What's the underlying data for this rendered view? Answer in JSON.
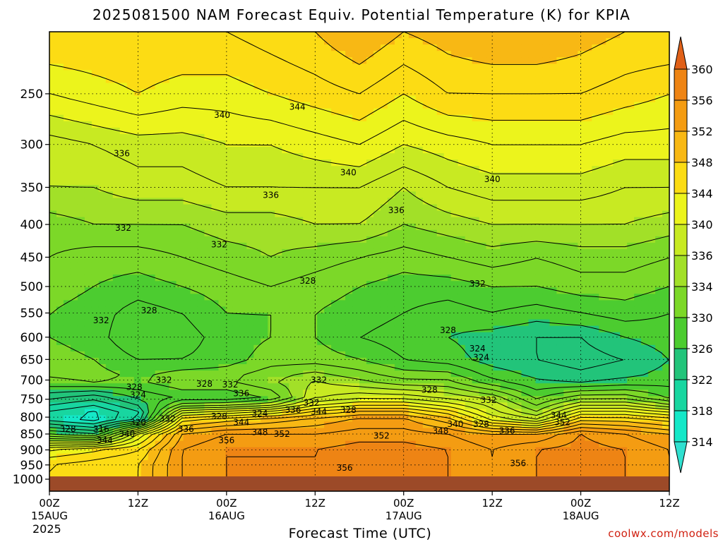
{
  "chart_data": {
    "type": "heatmap",
    "title": "2025081500 NAM Forecast Equiv. Potential Temperature (K) for KPIA",
    "xlabel": "Forecast Time (UTC)",
    "ylabel": "",
    "year_label": "2025",
    "credit": "coolwx.com/models",
    "x_ticks": [
      {
        "hour": 0,
        "label": "00Z",
        "date": "15AUG"
      },
      {
        "hour": 12,
        "label": "12Z",
        "date": ""
      },
      {
        "hour": 24,
        "label": "00Z",
        "date": "16AUG"
      },
      {
        "hour": 36,
        "label": "12Z",
        "date": ""
      },
      {
        "hour": 48,
        "label": "00Z",
        "date": "17AUG"
      },
      {
        "hour": 60,
        "label": "12Z",
        "date": ""
      },
      {
        "hour": 72,
        "label": "00Z",
        "date": "18AUG"
      },
      {
        "hour": 84,
        "label": "12Z",
        "date": ""
      }
    ],
    "xlim": [
      0,
      84
    ],
    "y_ticks": [
      250,
      300,
      350,
      400,
      450,
      500,
      550,
      600,
      650,
      700,
      750,
      800,
      850,
      900,
      950,
      1000
    ],
    "ylim": [
      200,
      1000
    ],
    "y_scale": "log-pressure (inverted)",
    "ground_level_hPa": 990,
    "colorbar": {
      "levels": [
        314,
        318,
        322,
        326,
        330,
        334,
        336,
        340,
        344,
        348,
        352,
        356,
        360
      ],
      "colors": [
        "#14e8c8",
        "#18d6a0",
        "#22c47a",
        "#4ccc30",
        "#7cd828",
        "#a2e028",
        "#c8ea22",
        "#ecf41c",
        "#fcdc14",
        "#f8b814",
        "#f49c12",
        "#ee8414",
        "#e46c16"
      ],
      "under_color": "#30e0d0",
      "over_color": "#e06018"
    },
    "profile_hPa": [
      200,
      250,
      300,
      350,
      400,
      450,
      500,
      550,
      600,
      650,
      700,
      750,
      800,
      850,
      900,
      950,
      1000
    ],
    "times": [
      0,
      6,
      12,
      18,
      24,
      30,
      36,
      42,
      48,
      54,
      60,
      66,
      72,
      78,
      84
    ],
    "theta_e": [
      [
        346,
        342,
        337,
        336,
        333,
        332,
        331,
        330,
        330,
        331,
        330,
        324,
        318,
        328,
        342,
        346,
        346
      ],
      [
        346,
        343,
        338,
        336,
        334,
        331,
        330,
        329,
        329,
        330,
        331,
        322,
        316,
        326,
        344,
        347,
        347
      ],
      [
        346,
        344,
        339,
        337,
        334,
        331,
        329,
        327,
        326,
        328,
        330,
        326,
        320,
        340,
        346,
        348,
        348
      ],
      [
        346,
        343,
        339,
        337,
        334,
        332,
        330,
        328,
        327,
        328,
        332,
        328,
        344,
        352,
        354,
        354,
        354
      ],
      [
        346,
        343,
        340,
        338,
        335,
        333,
        331,
        330,
        329,
        329,
        332,
        328,
        346,
        354,
        356,
        356,
        356
      ],
      [
        347,
        344,
        340,
        338,
        335,
        334,
        332,
        330,
        330,
        331,
        334,
        330,
        348,
        354,
        356,
        356,
        356
      ],
      [
        348,
        345,
        341,
        338,
        336,
        333,
        331,
        330,
        330,
        331,
        336,
        338,
        350,
        354,
        356,
        356,
        356
      ],
      [
        350,
        346,
        342,
        338,
        336,
        332,
        330,
        329,
        328,
        330,
        334,
        340,
        352,
        355,
        357,
        357,
        357
      ],
      [
        348,
        344,
        340,
        336,
        334,
        331,
        329,
        328,
        327,
        328,
        332,
        340,
        352,
        355,
        357,
        357,
        357
      ],
      [
        349,
        346,
        341,
        338,
        335,
        332,
        329,
        327,
        326,
        327,
        332,
        338,
        348,
        354,
        356,
        356,
        356
      ],
      [
        350,
        346,
        342,
        339,
        336,
        333,
        330,
        328,
        325,
        325,
        328,
        336,
        340,
        352,
        354,
        354,
        354
      ],
      [
        350,
        346,
        342,
        339,
        336,
        332,
        330,
        327,
        324,
        324,
        326,
        330,
        336,
        352,
        356,
        356,
        356
      ],
      [
        349,
        346,
        342,
        339,
        336,
        333,
        331,
        328,
        324,
        323,
        325,
        334,
        346,
        356,
        357,
        357,
        357
      ],
      [
        348,
        345,
        341,
        338,
        336,
        333,
        331,
        329,
        326,
        324,
        326,
        334,
        346,
        354,
        356,
        356,
        356
      ],
      [
        348,
        344,
        341,
        338,
        335,
        332,
        330,
        328,
        327,
        326,
        327,
        330,
        344,
        352,
        354,
        354,
        354
      ]
    ],
    "contour_labels": [
      {
        "t": 23.4,
        "p": 270,
        "v": "340"
      },
      {
        "t": 33.6,
        "p": 262,
        "v": "344"
      },
      {
        "t": 9.8,
        "p": 310,
        "v": "336"
      },
      {
        "t": 40.5,
        "p": 332,
        "v": "340"
      },
      {
        "t": 60.0,
        "p": 340,
        "v": "340"
      },
      {
        "t": 30.0,
        "p": 360,
        "v": "336"
      },
      {
        "t": 47.0,
        "p": 380,
        "v": "336"
      },
      {
        "t": 10.0,
        "p": 405,
        "v": "332"
      },
      {
        "t": 23.0,
        "p": 430,
        "v": "332"
      },
      {
        "t": 35.0,
        "p": 490,
        "v": "328"
      },
      {
        "t": 58.0,
        "p": 495,
        "v": "332"
      },
      {
        "t": 13.5,
        "p": 545,
        "v": "328"
      },
      {
        "t": 7.0,
        "p": 565,
        "v": "332"
      },
      {
        "t": 54.0,
        "p": 585,
        "v": "328"
      },
      {
        "t": 58.0,
        "p": 625,
        "v": "324"
      },
      {
        "t": 58.5,
        "p": 645,
        "v": "324"
      },
      {
        "t": 15.5,
        "p": 700,
        "v": "332"
      },
      {
        "t": 21.0,
        "p": 710,
        "v": "328"
      },
      {
        "t": 24.5,
        "p": 712,
        "v": "332"
      },
      {
        "t": 11.5,
        "p": 718,
        "v": "328"
      },
      {
        "t": 12.0,
        "p": 738,
        "v": "324"
      },
      {
        "t": 26.0,
        "p": 735,
        "v": "336"
      },
      {
        "t": 36.5,
        "p": 700,
        "v": "332"
      },
      {
        "t": 51.5,
        "p": 725,
        "v": "328"
      },
      {
        "t": 59.5,
        "p": 753,
        "v": "332"
      },
      {
        "t": 35.5,
        "p": 760,
        "v": "332"
      },
      {
        "t": 33.0,
        "p": 780,
        "v": "336"
      },
      {
        "t": 36.5,
        "p": 785,
        "v": "344"
      },
      {
        "t": 40.5,
        "p": 780,
        "v": "328"
      },
      {
        "t": 23.0,
        "p": 798,
        "v": "328"
      },
      {
        "t": 28.5,
        "p": 790,
        "v": "324"
      },
      {
        "t": 12.0,
        "p": 815,
        "v": "320"
      },
      {
        "t": 16.0,
        "p": 805,
        "v": "332"
      },
      {
        "t": 2.5,
        "p": 835,
        "v": "328"
      },
      {
        "t": 7.0,
        "p": 835,
        "v": "316"
      },
      {
        "t": 10.5,
        "p": 850,
        "v": "340"
      },
      {
        "t": 18.5,
        "p": 835,
        "v": "336"
      },
      {
        "t": 26.0,
        "p": 815,
        "v": "344"
      },
      {
        "t": 28.5,
        "p": 845,
        "v": "348"
      },
      {
        "t": 31.5,
        "p": 850,
        "v": "352"
      },
      {
        "t": 45.0,
        "p": 855,
        "v": "352"
      },
      {
        "t": 53.0,
        "p": 840,
        "v": "348"
      },
      {
        "t": 55.0,
        "p": 820,
        "v": "340"
      },
      {
        "t": 58.5,
        "p": 820,
        "v": "328"
      },
      {
        "t": 62.0,
        "p": 840,
        "v": "336"
      },
      {
        "t": 69.0,
        "p": 795,
        "v": "344"
      },
      {
        "t": 69.5,
        "p": 815,
        "v": "352"
      },
      {
        "t": 24.0,
        "p": 870,
        "v": "356"
      },
      {
        "t": 40.0,
        "p": 960,
        "v": "356"
      },
      {
        "t": 63.5,
        "p": 945,
        "v": "356"
      },
      {
        "t": 7.5,
        "p": 870,
        "v": "344"
      }
    ]
  }
}
